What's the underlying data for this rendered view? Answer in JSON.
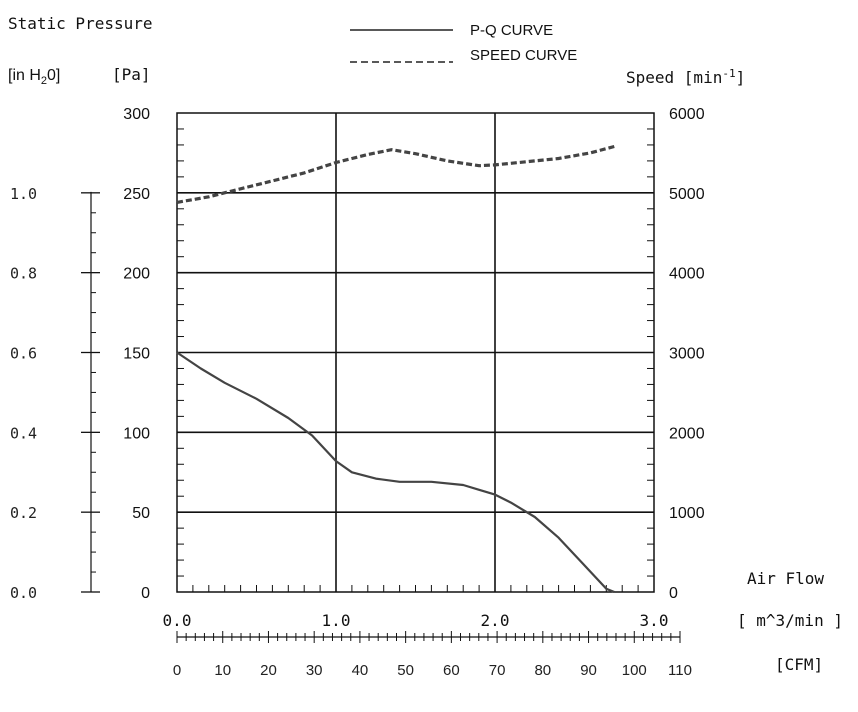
{
  "chart_data": {
    "type": "line",
    "title": "",
    "left_axis_title": "Static Pressure",
    "inh2o_unit": "[in H",
    "inh2o_sub": "2",
    "inh2o_tail": "0]",
    "pa_unit": "[Pa]",
    "speed_unit_base": "Speed [min",
    "speed_unit_sup": "-1",
    "speed_unit_tail": "]",
    "xlabel": "Air Flow",
    "x_unit": "[ m^3/min ]",
    "cfm_unit": "[CFM]",
    "xlim": [
      0,
      3.0
    ],
    "ylim_pa": [
      0,
      300
    ],
    "ylim_speed": [
      0,
      6000
    ],
    "ylim_inh2o": [
      0,
      1.2
    ],
    "cfm_range": [
      0,
      110
    ],
    "x_ticks": [
      "0.0",
      "1.0",
      "2.0",
      "3.0"
    ],
    "pa_ticks": [
      "0",
      "50",
      "100",
      "150",
      "200",
      "250",
      "300"
    ],
    "speed_ticks": [
      "0",
      "1000",
      "2000",
      "3000",
      "4000",
      "5000",
      "6000"
    ],
    "inh2o_ticks": [
      "0.0",
      "0.2",
      "0.4",
      "0.6",
      "0.8",
      "1.0"
    ],
    "cfm_ticks": [
      "0",
      "10",
      "20",
      "30",
      "40",
      "50",
      "60",
      "70",
      "80",
      "90",
      "100",
      "110"
    ],
    "grid": true,
    "legend_position": "top-center",
    "series": [
      {
        "name": "P-Q CURVE",
        "style": "solid",
        "axis": "pressure_pa",
        "x": [
          0.0,
          0.15,
          0.3,
          0.5,
          0.7,
          0.85,
          1.0,
          1.1,
          1.25,
          1.4,
          1.6,
          1.8,
          1.9,
          2.0,
          2.1,
          2.25,
          2.4,
          2.55,
          2.7,
          2.75
        ],
        "y": [
          150,
          140,
          131,
          121,
          109,
          98,
          82,
          75,
          71,
          69,
          69,
          67,
          64,
          61,
          56,
          47,
          34,
          18,
          2,
          0
        ]
      },
      {
        "name": "SPEED CURVE",
        "style": "dashed",
        "axis": "speed",
        "x": [
          0.0,
          0.2,
          0.4,
          0.6,
          0.8,
          1.0,
          1.2,
          1.35,
          1.5,
          1.7,
          1.9,
          2.0,
          2.2,
          2.4,
          2.6,
          2.75
        ],
        "y": [
          4880,
          4950,
          5050,
          5150,
          5250,
          5380,
          5480,
          5540,
          5490,
          5400,
          5340,
          5350,
          5390,
          5430,
          5500,
          5580
        ]
      }
    ]
  }
}
